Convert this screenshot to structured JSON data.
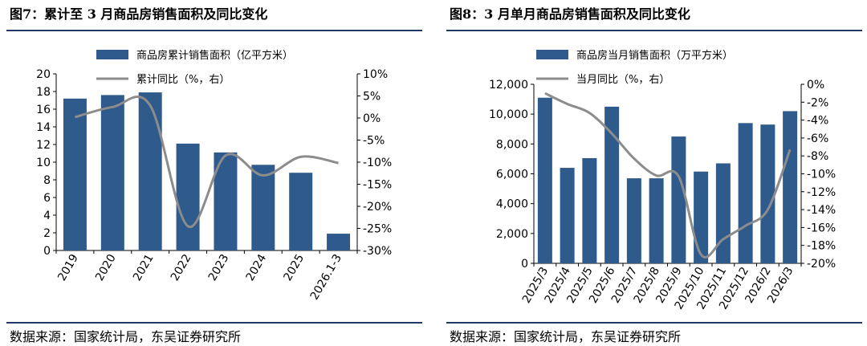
{
  "colors": {
    "bar": "#2e5a8c",
    "line": "#8c8c8c",
    "rule": "#1f3864"
  },
  "charts": [
    {
      "figure_title": "图7：累计至 3 月商品房销售面积及同比变化",
      "source": "数据来源：国家统计局，东吴证券研究所",
      "legend_bar": "商品房累计销售面积（亿平方米）",
      "legend_line": "累计同比（%，右）"
    },
    {
      "figure_title": "图8：3 月单月商品房销售面积及同比变化",
      "source": "数据来源：国家统计局，东吴证券研究所",
      "legend_bar": "商品房当月销售面积（万平方米）",
      "legend_line": "当月同比（%，右）"
    }
  ],
  "chart_data": [
    {
      "type": "bar",
      "title": "图7：累计至 3 月商品房销售面积及同比变化",
      "categories": [
        "2019",
        "2020",
        "2021",
        "2022",
        "2023",
        "2024",
        "2025",
        "2026.1-3"
      ],
      "series": [
        {
          "name": "商品房累计销售面积（亿平方米）",
          "type": "bar",
          "axis": "left",
          "values": [
            17.2,
            17.6,
            17.9,
            12.1,
            11.1,
            9.7,
            8.8,
            1.9
          ]
        },
        {
          "name": "累计同比（%，右）",
          "type": "line",
          "axis": "right",
          "smooth": true,
          "values": [
            0.2,
            2.5,
            2.8,
            -24.5,
            -8.5,
            -13.0,
            -8.8,
            -10.2
          ]
        }
      ],
      "left_axis": {
        "ylim": [
          0,
          20
        ],
        "ticks": [
          "0",
          "2",
          "4",
          "6",
          "8",
          "10",
          "12",
          "14",
          "16",
          "18",
          "20"
        ]
      },
      "right_axis": {
        "ylim": [
          -30,
          10
        ],
        "ticks": [
          "-30%",
          "-25%",
          "-20%",
          "-15%",
          "-10%",
          "-5%",
          "0%",
          "5%",
          "10%"
        ]
      },
      "legend": "top",
      "grid": false
    },
    {
      "type": "bar",
      "title": "图8：3 月单月商品房销售面积及同比变化",
      "categories": [
        "2025/3",
        "2025/4",
        "2025/5",
        "2025/6",
        "2025/7",
        "2025/8",
        "2025/9",
        "2025/10",
        "2025/11",
        "2025/12",
        "2026/2",
        "2026/3"
      ],
      "series": [
        {
          "name": "商品房当月销售面积（万平方米）",
          "type": "bar",
          "axis": "left",
          "values": [
            11100,
            6400,
            7050,
            10500,
            5700,
            5700,
            8500,
            6150,
            6700,
            9400,
            9300,
            10200
          ]
        },
        {
          "name": "当月同比（%，右）",
          "type": "line",
          "axis": "right",
          "smooth": true,
          "values": [
            -1.0,
            -2.2,
            -3.2,
            -5.5,
            -8.3,
            -10.2,
            -10.3,
            -19.0,
            -17.3,
            -15.8,
            -14.0,
            -7.3
          ]
        }
      ],
      "left_axis": {
        "ylim": [
          0,
          12000
        ],
        "ticks": [
          "0",
          "2,000",
          "4,000",
          "6,000",
          "8,000",
          "10,000",
          "12,000"
        ]
      },
      "right_axis": {
        "ylim": [
          -20,
          0
        ],
        "ticks": [
          "-20%",
          "-18%",
          "-16%",
          "-14%",
          "-12%",
          "-10%",
          "-8%",
          "-6%",
          "-4%",
          "-2%",
          "0%"
        ]
      },
      "legend": "top",
      "grid": false
    }
  ]
}
